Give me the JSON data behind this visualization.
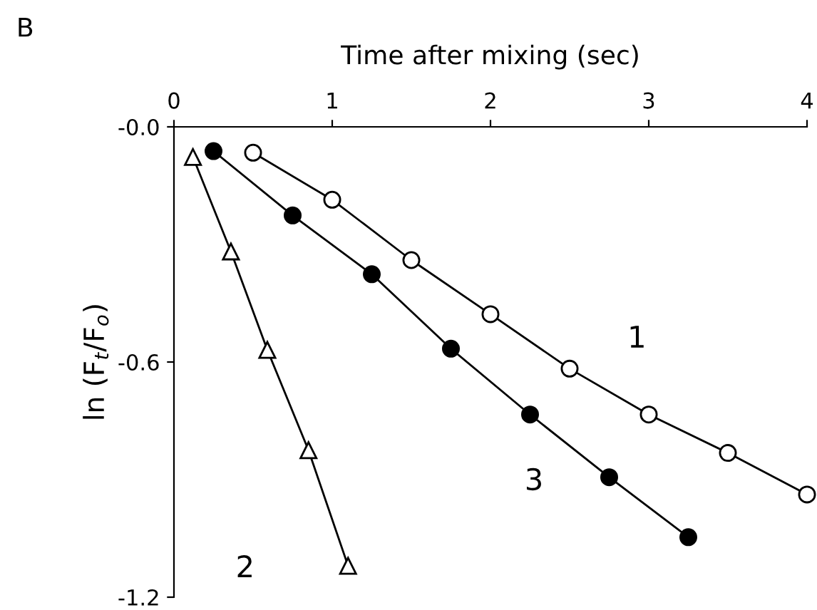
{
  "chart_data": {
    "type": "line",
    "xlabel": "Time after mixing (sec)",
    "ylabel": "ln (F$_{t}$/F$_{o}$)",
    "xlim": [
      0,
      4
    ],
    "xticks": [
      0,
      1,
      2,
      3,
      4
    ],
    "ylim": [
      -1.2,
      0
    ],
    "yticks": [
      {
        "value": 0,
        "label": "-0.0"
      },
      -0.6,
      -1.2
    ],
    "grid": false,
    "line_style": "solid",
    "series": [
      {
        "name": "1",
        "color": "#000000",
        "marker": "circle",
        "x": [
          0.5,
          1.0,
          1.5,
          2.0,
          2.5,
          3.0,
          3.5,
          4.0
        ],
        "values": [
          -0.066,
          -0.186,
          -0.34,
          -0.478,
          -0.617,
          -0.734,
          -0.832,
          -0.938
        ]
      },
      {
        "name": "2",
        "color": "#000000",
        "marker": "triangle",
        "x": [
          0.12,
          0.36,
          0.59,
          0.85,
          1.1
        ],
        "values": [
          -0.077,
          -0.318,
          -0.569,
          -0.825,
          -1.12
        ]
      },
      {
        "name": "3",
        "color": "#000000",
        "marker": "circle",
        "x": [
          0.25,
          0.75,
          1.25,
          1.75,
          2.25,
          2.75,
          3.25
        ],
        "values": [
          -0.062,
          -0.226,
          -0.376,
          -0.566,
          -0.734,
          -0.894,
          -1.047
        ]
      }
    ],
    "annotations": [
      "B"
    ]
  }
}
